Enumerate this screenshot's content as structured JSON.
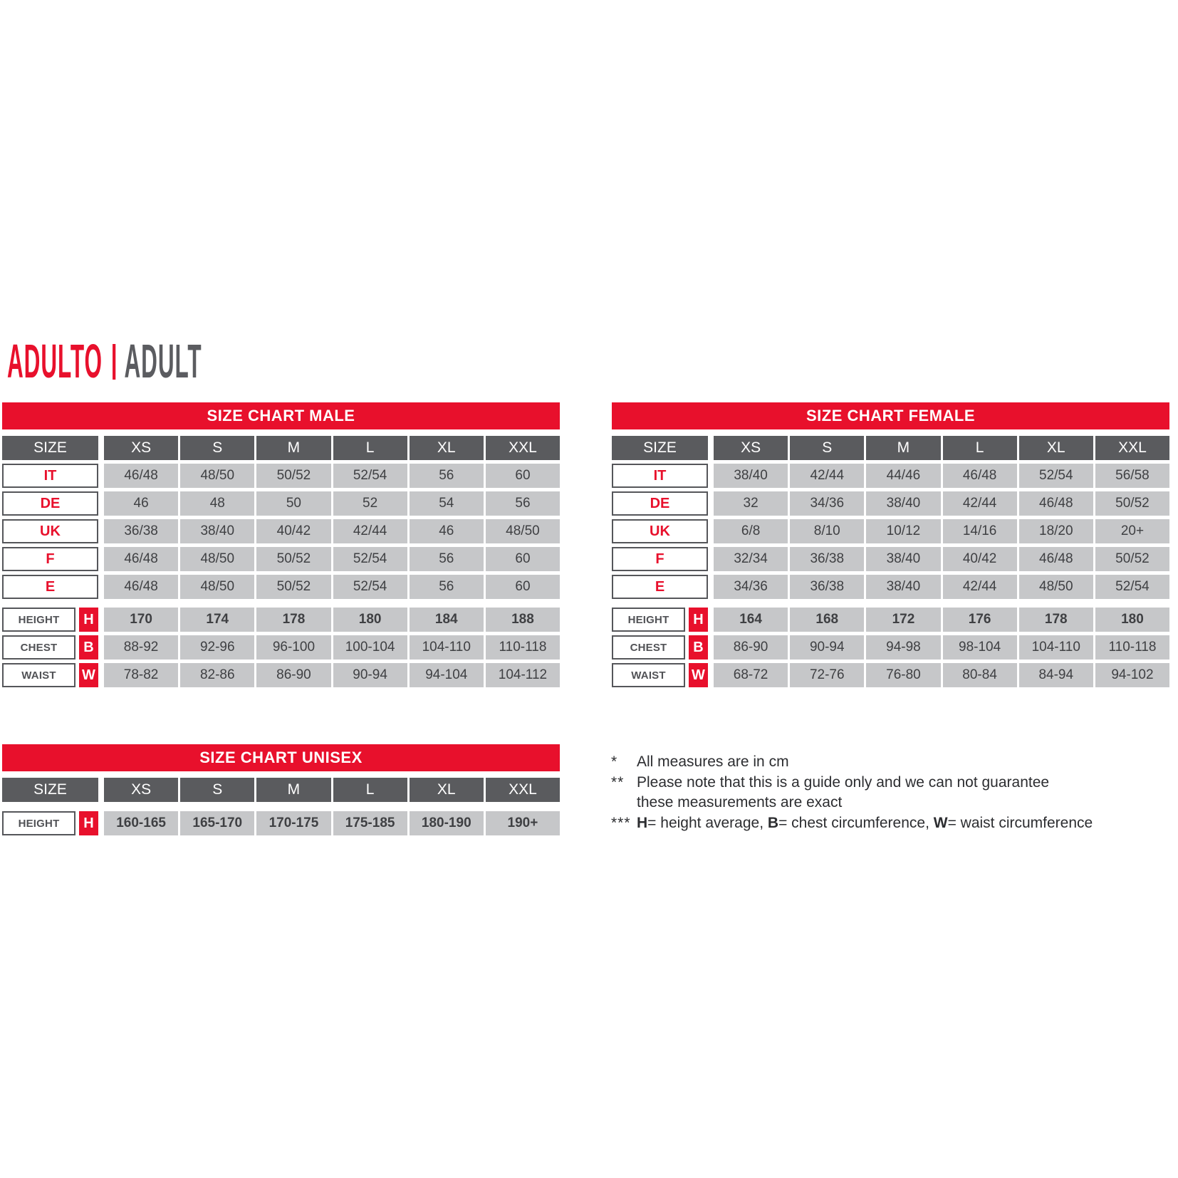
{
  "title": {
    "primary": "ADULTO",
    "secondary": "ADULT"
  },
  "colors": {
    "accent_red": "#e8102c",
    "header_gray": "#5a5b5e",
    "cell_gray": "#c6c7c9",
    "title_gray": "#5b5c60"
  },
  "tables": [
    {
      "id": "male",
      "title": "SIZE CHART MALE",
      "size_label": "SIZE",
      "columns": [
        "XS",
        "S",
        "M",
        "L",
        "XL",
        "XXL"
      ],
      "region_rows": [
        {
          "label": "IT",
          "values": [
            "46/48",
            "48/50",
            "50/52",
            "52/54",
            "56",
            "60"
          ]
        },
        {
          "label": "DE",
          "values": [
            "46",
            "48",
            "50",
            "52",
            "54",
            "56"
          ]
        },
        {
          "label": "UK",
          "values": [
            "36/38",
            "38/40",
            "40/42",
            "42/44",
            "46",
            "48/50"
          ]
        },
        {
          "label": "F",
          "values": [
            "46/48",
            "48/50",
            "50/52",
            "52/54",
            "56",
            "60"
          ]
        },
        {
          "label": "E",
          "values": [
            "46/48",
            "48/50",
            "50/52",
            "52/54",
            "56",
            "60"
          ]
        }
      ],
      "measure_rows": [
        {
          "label": "HEIGHT",
          "key": "H",
          "bold": true,
          "values": [
            "170",
            "174",
            "178",
            "180",
            "184",
            "188"
          ]
        },
        {
          "label": "CHEST",
          "key": "B",
          "bold": false,
          "values": [
            "88-92",
            "92-96",
            "96-100",
            "100-104",
            "104-110",
            "110-118"
          ]
        },
        {
          "label": "WAIST",
          "key": "W",
          "bold": false,
          "values": [
            "78-82",
            "82-86",
            "86-90",
            "90-94",
            "94-104",
            "104-112"
          ]
        }
      ]
    },
    {
      "id": "female",
      "title": "SIZE CHART FEMALE",
      "size_label": "SIZE",
      "columns": [
        "XS",
        "S",
        "M",
        "L",
        "XL",
        "XXL"
      ],
      "region_rows": [
        {
          "label": "IT",
          "values": [
            "38/40",
            "42/44",
            "44/46",
            "46/48",
            "52/54",
            "56/58"
          ]
        },
        {
          "label": "DE",
          "values": [
            "32",
            "34/36",
            "38/40",
            "42/44",
            "46/48",
            "50/52"
          ]
        },
        {
          "label": "UK",
          "values": [
            "6/8",
            "8/10",
            "10/12",
            "14/16",
            "18/20",
            "20+"
          ]
        },
        {
          "label": "F",
          "values": [
            "32/34",
            "36/38",
            "38/40",
            "40/42",
            "46/48",
            "50/52"
          ]
        },
        {
          "label": "E",
          "values": [
            "34/36",
            "36/38",
            "38/40",
            "42/44",
            "48/50",
            "52/54"
          ]
        }
      ],
      "measure_rows": [
        {
          "label": "HEIGHT",
          "key": "H",
          "bold": true,
          "values": [
            "164",
            "168",
            "172",
            "176",
            "178",
            "180"
          ]
        },
        {
          "label": "CHEST",
          "key": "B",
          "bold": false,
          "values": [
            "86-90",
            "90-94",
            "94-98",
            "98-104",
            "104-110",
            "110-118"
          ]
        },
        {
          "label": "WAIST",
          "key": "W",
          "bold": false,
          "values": [
            "68-72",
            "72-76",
            "76-80",
            "80-84",
            "84-94",
            "94-102"
          ]
        }
      ]
    },
    {
      "id": "unisex",
      "title": "SIZE CHART UNISEX",
      "size_label": "SIZE",
      "columns": [
        "XS",
        "S",
        "M",
        "L",
        "XL",
        "XXL"
      ],
      "region_rows": [],
      "measure_rows": [
        {
          "label": "HEIGHT",
          "key": "H",
          "bold": true,
          "values": [
            "160-165",
            "165-170",
            "170-175",
            "175-185",
            "180-190",
            "190+"
          ]
        }
      ]
    }
  ],
  "footnotes": [
    {
      "marker": "*",
      "lines": [
        [
          {
            "t": "All measures are in cm"
          }
        ]
      ]
    },
    {
      "marker": "**",
      "lines": [
        [
          {
            "t": "Please note that this is a guide only and we can not guarantee"
          }
        ],
        [
          {
            "t": "these measurements are exact"
          }
        ]
      ]
    },
    {
      "marker": "***",
      "lines": [
        [
          {
            "t": "H",
            "b": 1
          },
          {
            "t": "= height average, "
          },
          {
            "t": "B",
            "b": 1
          },
          {
            "t": "= chest circumference, "
          },
          {
            "t": "W",
            "b": 1
          },
          {
            "t": "= waist circumference"
          }
        ]
      ]
    }
  ]
}
